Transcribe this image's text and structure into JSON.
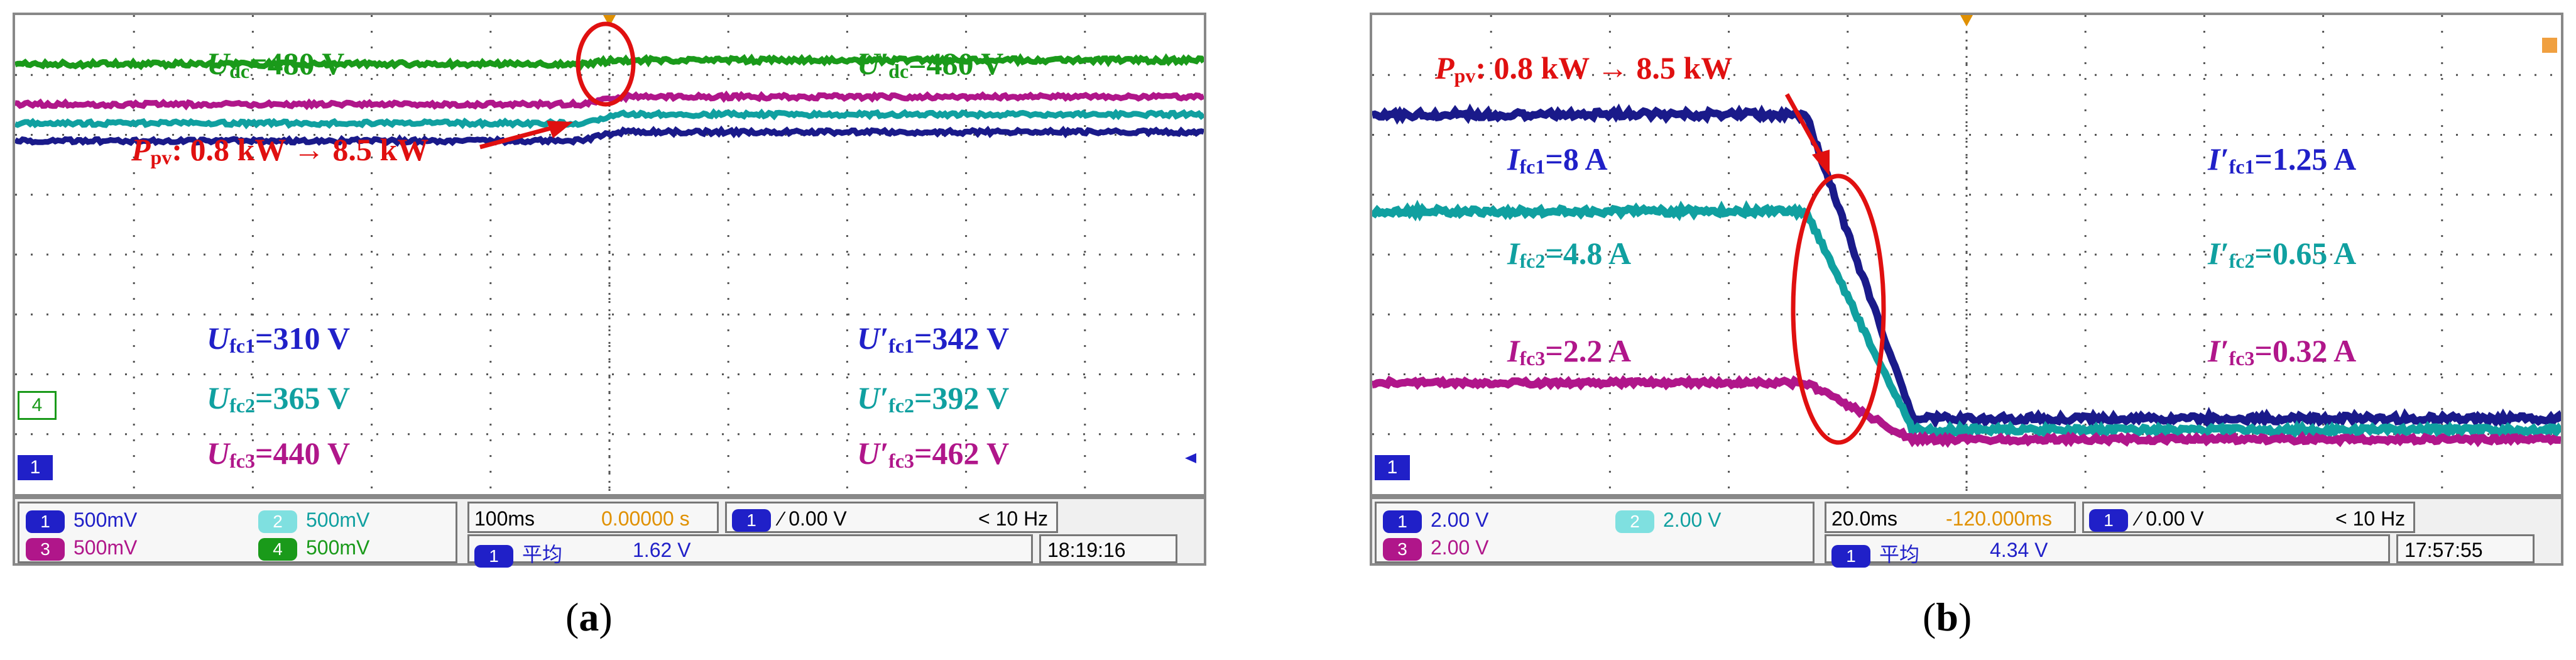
{
  "figures": [
    {
      "id": "a",
      "caption": "a",
      "chart_data": {
        "type": "line",
        "title": "",
        "time_div": "100ms",
        "series": [
          {
            "name": "Udc",
            "color": "#1a9a1a",
            "before": 1,
            "after": 1
          },
          {
            "name": "Ufc3",
            "color": "#b0168a",
            "before": 2,
            "after": 2
          },
          {
            "name": "Ufc2",
            "color": "#10a0a0",
            "before": 3,
            "after": 3
          },
          {
            "name": "Ufc1",
            "color": "#1a1a8a",
            "before": 4,
            "after": 4
          }
        ],
        "annotations": {
          "udc": {
            "sym": "U",
            "sub": "dc",
            "val": "=480 V"
          },
          "udc_p": {
            "sym": "U′",
            "sub": "dc",
            "val": "=480 V"
          },
          "ppv": {
            "sym": "P",
            "sub": "pv",
            "val": ": 0.8 kW → 8.5 kW"
          },
          "ufc1": {
            "sym": "U",
            "sub": "fc1",
            "val": "=310 V"
          },
          "ufc2": {
            "sym": "U",
            "sub": "fc2",
            "val": "=365 V"
          },
          "ufc3": {
            "sym": "U",
            "sub": "fc3",
            "val": "=440 V"
          },
          "ufc1_p": {
            "sym": "U′",
            "sub": "fc1",
            "val": "=342 V"
          },
          "ufc2_p": {
            "sym": "U′",
            "sub": "fc2",
            "val": "=392 V"
          },
          "ufc3_p": {
            "sym": "U′",
            "sub": "fc3",
            "val": "=462 V"
          }
        }
      },
      "status": {
        "ch1": "500mV",
        "ch2": "500mV",
        "ch3": "500mV",
        "ch4": "500mV",
        "time_div": "100ms",
        "delay": "0.00000 s",
        "trig": "∕ 0.00 V",
        "freq": "< 10 Hz",
        "avg_label": "平均",
        "avg_val": "1.62 V",
        "clock": "18:19:16"
      },
      "markers": {
        "left4": "4",
        "left1": "1"
      }
    },
    {
      "id": "b",
      "caption": "b",
      "chart_data": {
        "type": "line",
        "title": "",
        "time_div": "20.0ms",
        "annotations": {
          "ppv": {
            "sym": "P",
            "sub": "pv",
            "val": ": 0.8 kW → 8.5 kW"
          },
          "ifc1": {
            "sym": "I",
            "sub": "fc1",
            "val": "=8 A"
          },
          "ifc2": {
            "sym": "I",
            "sub": "fc2",
            "val": "=4.8 A"
          },
          "ifc3": {
            "sym": "I",
            "sub": "fc3",
            "val": "=2.2 A"
          },
          "ifc1_p": {
            "sym": "I′",
            "sub": "fc1",
            "val": "=1.25 A"
          },
          "ifc2_p": {
            "sym": "I′",
            "sub": "fc2",
            "val": "=0.65 A"
          },
          "ifc3_p": {
            "sym": "I′",
            "sub": "fc3",
            "val": "=0.32 A"
          }
        }
      },
      "status": {
        "ch1": "2.00 V",
        "ch2": "2.00 V",
        "ch3": "2.00 V",
        "time_div": "20.0ms",
        "delay": "-120.000ms",
        "trig": "∕ 0.00 V",
        "freq": "< 10 Hz",
        "avg_label": "平均",
        "avg_val": "4.34 V",
        "clock": "17:57:55"
      },
      "markers": {
        "left1": "1"
      }
    }
  ],
  "colors": {
    "green": "#1a9a1a",
    "purple": "#b0168a",
    "teal": "#10a0a0",
    "navy": "#1a1a8a",
    "blue": "#2020c8",
    "red": "#e01010"
  }
}
